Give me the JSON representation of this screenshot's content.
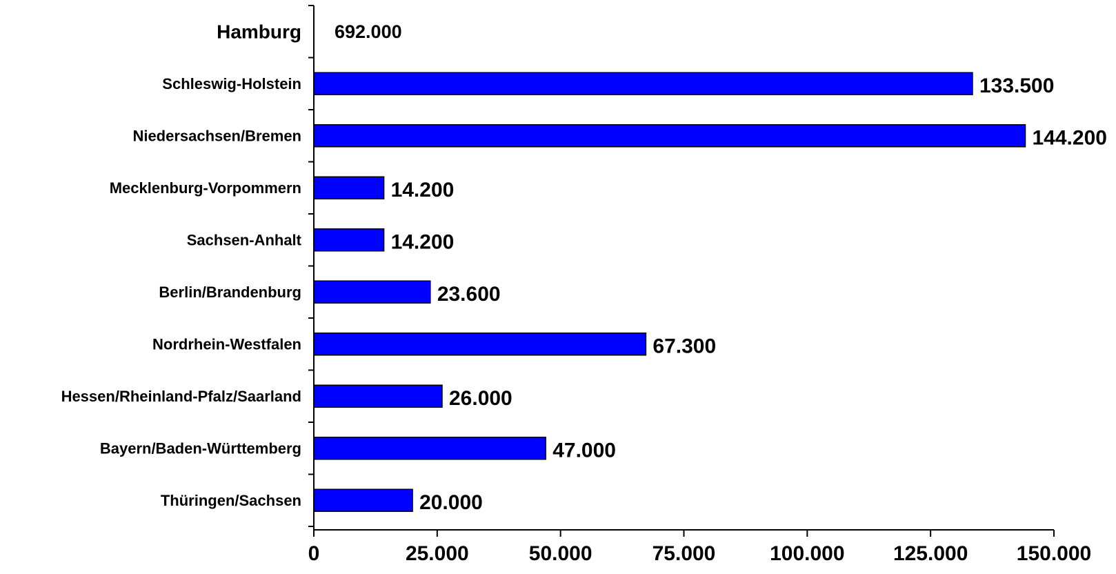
{
  "chart_data": {
    "type": "bar",
    "orientation": "horizontal",
    "title": "",
    "xlabel": "",
    "ylabel": "",
    "xlim": [
      0,
      150000
    ],
    "x_ticks": [
      0,
      25000,
      50000,
      75000,
      100000,
      125000,
      150000
    ],
    "x_tick_labels": [
      "0",
      "25.000",
      "50.000",
      "75.000",
      "100.000",
      "125.000",
      "150.000"
    ],
    "grid": false,
    "legend": "none",
    "bar_color": "#0000ff",
    "bar_stroke": "#000000",
    "categories": [
      "Hamburg",
      "Schleswig-Holstein",
      "Niedersachsen/Bremen",
      "Mecklenburg-Vorpommern",
      "Sachsen-Anhalt",
      "Berlin/Brandenburg",
      "Nordrhein-Westfalen",
      "Hessen/Rheinland-Pfalz/Saarland",
      "Bayern/Baden-Württemberg",
      "Thüringen/Sachsen"
    ],
    "values": [
      692000,
      133500,
      144200,
      14200,
      14200,
      23600,
      67300,
      26000,
      47000,
      20000
    ],
    "value_labels": [
      "692.000",
      "133.500",
      "144.200",
      "14.200",
      "14.200",
      "23.600",
      "67.300",
      "26.000",
      "47.000",
      "20.000"
    ],
    "bar_drawn": [
      false,
      true,
      true,
      true,
      true,
      true,
      true,
      true,
      true,
      true
    ]
  }
}
